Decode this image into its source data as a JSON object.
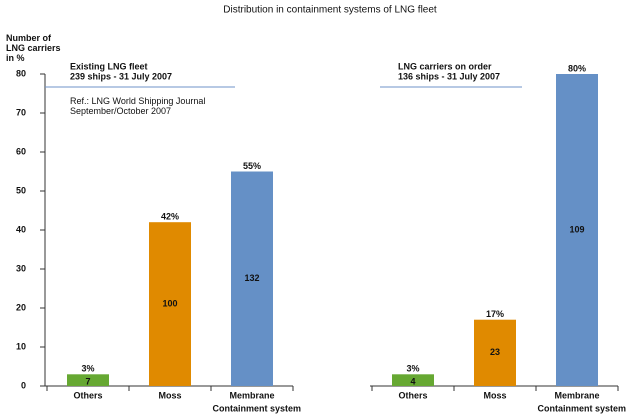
{
  "title": "Distribution in containment systems of LNG fleet",
  "chart_data": [
    {
      "type": "bar",
      "y_label": "Number of LNG carriers in %",
      "x_label": "Containment system",
      "panel_title": "Existing LNG fleet",
      "panel_subtitle": "239 ships - 31 July 2007",
      "note": "Ref.: LNG World Shipping Journal September/October 2007",
      "categories": [
        "Others",
        "Moss",
        "Membrane"
      ],
      "series": [
        {
          "colors": [
            "#66a832",
            "#e08a00",
            "#6590c6"
          ],
          "values": [
            3,
            42,
            55
          ],
          "value_labels": [
            "3%",
            "42%",
            "55%"
          ],
          "ship_counts": [
            7,
            100,
            132
          ]
        }
      ],
      "ylim": [
        0,
        80
      ],
      "yticks": [
        0,
        10,
        20,
        30,
        40,
        50,
        60,
        70,
        80
      ]
    },
    {
      "type": "bar",
      "x_label": "Containment system",
      "panel_title": "LNG carriers on order",
      "panel_subtitle": "136 ships - 31 July 2007",
      "categories": [
        "Others",
        "Moss",
        "Membrane"
      ],
      "series": [
        {
          "colors": [
            "#66a832",
            "#e08a00",
            "#6590c6"
          ],
          "values": [
            3,
            17,
            80
          ],
          "value_labels": [
            "3%",
            "17%",
            "80%"
          ],
          "ship_counts": [
            4,
            23,
            109
          ]
        }
      ],
      "ylim": [
        0,
        80
      ]
    }
  ]
}
